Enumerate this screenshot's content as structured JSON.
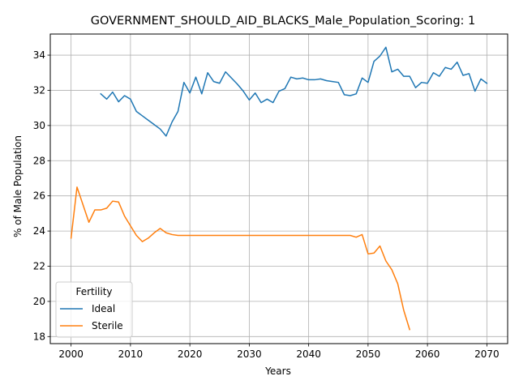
{
  "chart_data": {
    "type": "line",
    "title": "GOVERNMENT_SHOULD_AID_BLACKS_Male_Population_Scoring: 1",
    "xlabel": "Years",
    "ylabel": "% of Male Population",
    "xlim": [
      1996.5,
      2073.5
    ],
    "ylim": [
      17.6,
      35.2
    ],
    "xticks": [
      2000,
      2010,
      2020,
      2030,
      2040,
      2050,
      2060,
      2070
    ],
    "yticks": [
      18,
      20,
      22,
      24,
      26,
      28,
      30,
      32,
      34
    ],
    "grid": true,
    "legend": {
      "title": "Fertility",
      "placement": "lower-left"
    },
    "series": [
      {
        "name": "Ideal",
        "color": "#1f77b4",
        "x": [
          2005,
          2006,
          2007,
          2008,
          2009,
          2010,
          2011,
          2012,
          2013,
          2014,
          2015,
          2016,
          2017,
          2018,
          2019,
          2020,
          2021,
          2022,
          2023,
          2024,
          2025,
          2026,
          2027,
          2028,
          2029,
          2030,
          2031,
          2032,
          2033,
          2034,
          2035,
          2036,
          2037,
          2038,
          2039,
          2040,
          2041,
          2042,
          2043,
          2044,
          2045,
          2046,
          2047,
          2048,
          2049,
          2050,
          2051,
          2052,
          2053,
          2054,
          2055,
          2056,
          2057,
          2058,
          2059,
          2060,
          2061,
          2062,
          2063,
          2064,
          2065,
          2066,
          2067,
          2068,
          2069,
          2070
        ],
        "values": [
          31.8,
          31.5,
          31.9,
          31.35,
          31.7,
          31.5,
          30.8,
          30.55,
          30.3,
          30.05,
          29.8,
          29.4,
          30.2,
          30.8,
          32.45,
          31.85,
          32.75,
          31.8,
          33.0,
          32.5,
          32.4,
          33.05,
          32.7,
          32.35,
          31.95,
          31.45,
          31.85,
          31.3,
          31.5,
          31.3,
          31.95,
          32.1,
          32.75,
          32.65,
          32.7,
          32.6,
          32.6,
          32.65,
          32.55,
          32.5,
          32.45,
          31.75,
          31.7,
          31.8,
          32.7,
          32.45,
          33.65,
          33.95,
          34.45,
          33.05,
          33.2,
          32.8,
          32.8,
          32.15,
          32.45,
          32.4,
          33.0,
          32.8,
          33.3,
          33.2,
          33.6,
          32.85,
          32.95,
          31.95,
          32.65,
          32.4
        ]
      },
      {
        "name": "Sterile",
        "color": "#ff7f0e",
        "x": [
          2000,
          2001,
          2002,
          2003,
          2004,
          2005,
          2006,
          2007,
          2008,
          2009,
          2010,
          2011,
          2012,
          2013,
          2014,
          2015,
          2016,
          2017,
          2018,
          2019,
          2020,
          2021,
          2022,
          2023,
          2024,
          2025,
          2026,
          2027,
          2028,
          2029,
          2030,
          2031,
          2032,
          2033,
          2034,
          2035,
          2036,
          2037,
          2038,
          2039,
          2040,
          2041,
          2042,
          2043,
          2044,
          2045,
          2046,
          2047,
          2048,
          2049,
          2050,
          2051,
          2052,
          2053,
          2054,
          2055,
          2056,
          2057
        ],
        "values": [
          23.6,
          26.5,
          25.5,
          24.5,
          25.2,
          25.2,
          25.3,
          25.7,
          25.65,
          24.85,
          24.3,
          23.75,
          23.4,
          23.6,
          23.9,
          24.15,
          23.9,
          23.8,
          23.75,
          23.75,
          23.75,
          23.75,
          23.75,
          23.75,
          23.75,
          23.75,
          23.75,
          23.75,
          23.75,
          23.75,
          23.75,
          23.75,
          23.75,
          23.75,
          23.75,
          23.75,
          23.75,
          23.75,
          23.75,
          23.75,
          23.75,
          23.75,
          23.75,
          23.75,
          23.75,
          23.75,
          23.75,
          23.75,
          23.65,
          23.8,
          22.7,
          22.75,
          23.15,
          22.3,
          21.8,
          21.0,
          19.5,
          18.4
        ]
      }
    ]
  }
}
